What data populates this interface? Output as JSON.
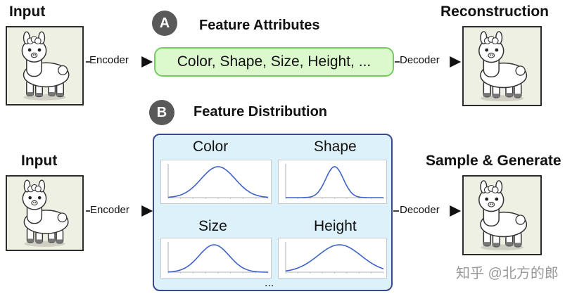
{
  "section_a": {
    "badge": "A",
    "title": "Feature Attributes",
    "input_title": "Input",
    "output_title": "Reconstruction",
    "encoder_label": "Encoder",
    "decoder_label": "Decoder",
    "attributes_text": "Color, Shape, Size, Height, ..."
  },
  "section_b": {
    "badge": "B",
    "title": "Feature Distribution",
    "input_title": "Input",
    "output_title": "Sample & Generate",
    "encoder_label": "Encoder",
    "decoder_label": "Decoder",
    "plots": [
      {
        "title": "Color",
        "center": 0.5,
        "spread": 0.17
      },
      {
        "title": "Shape",
        "center": 0.5,
        "spread": 0.09
      },
      {
        "title": "Size",
        "center": 0.46,
        "spread": 0.15
      },
      {
        "title": "Height",
        "center": 0.55,
        "spread": 0.22
      }
    ],
    "more": "..."
  },
  "colors": {
    "attr_fill": "#dcf8cd",
    "attr_border": "#77c961",
    "dist_fill": "#ddf1fa",
    "dist_border": "#3a4a92",
    "badge": "#595959",
    "curve": "#3f63c4"
  },
  "watermark": "知乎 @北方的郎"
}
